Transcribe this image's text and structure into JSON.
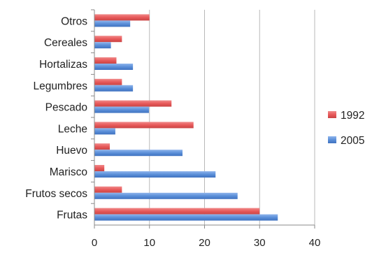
{
  "chart_data": {
    "type": "bar",
    "orientation": "horizontal",
    "categories": [
      "Frutas",
      "Frutos secos",
      "Marisco",
      "Huevo",
      "Leche",
      "Pescado",
      "Legumbres",
      "Hortalizas",
      "Cereales",
      "Otros"
    ],
    "series": [
      {
        "name": "1992",
        "color": "#e8595a",
        "values": [
          30,
          5,
          1.8,
          2.8,
          18,
          14,
          5,
          4,
          5,
          10
        ]
      },
      {
        "name": "2005",
        "color": "#5b8fd9",
        "values": [
          33.3,
          26,
          22,
          16,
          3.8,
          9.9,
          7,
          7,
          3,
          6.5
        ]
      }
    ],
    "xlim": [
      0,
      40
    ],
    "xticks": [
      "0",
      "10",
      "20",
      "30",
      "40"
    ],
    "grid": "vertical",
    "legend_position": "right"
  }
}
